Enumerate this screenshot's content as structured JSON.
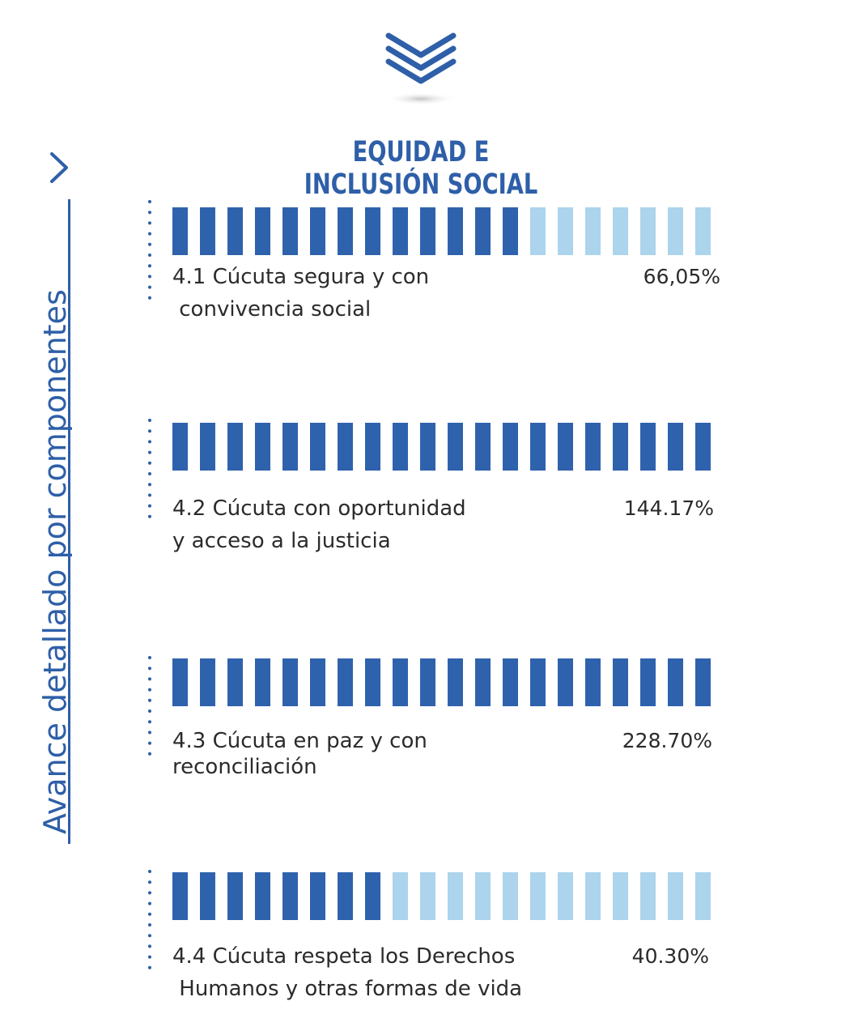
{
  "colors": {
    "primary": "#2e5fa8",
    "filled": "#2f62ad",
    "empty": "#acd4ec",
    "title": "#2e5fa8"
  },
  "header": {
    "title": "EQUIDAD E INCLUSIÓN SOCIAL",
    "icon": "triple-chevron-down-icon"
  },
  "side": {
    "label": "Avance detallado por  componentes",
    "icon": "chevron-right-icon"
  },
  "chart_data": {
    "type": "bar",
    "title": "EQUIDAD E INCLUSIÓN SOCIAL",
    "segments_total": 20,
    "rows": [
      {
        "label_lines": [
          "4.1 Cúcuta segura y con",
          " convivencia social"
        ],
        "value_label": "66,05%",
        "filled_segments": 13
      },
      {
        "label_lines": [
          "4.2 Cúcuta con oportunidad",
          "y acceso a la justicia"
        ],
        "value_label": "144.17%",
        "filled_segments": 20
      },
      {
        "label_lines": [
          "4.3 Cúcuta en paz y con",
          "reconciliación"
        ],
        "value_label": "228.70%",
        "filled_segments": 20
      },
      {
        "label_lines": [
          "4.4 Cúcuta respeta los Derechos",
          " Humanos y otras formas de vida"
        ],
        "value_label": "40.30%",
        "filled_segments": 8
      }
    ]
  }
}
